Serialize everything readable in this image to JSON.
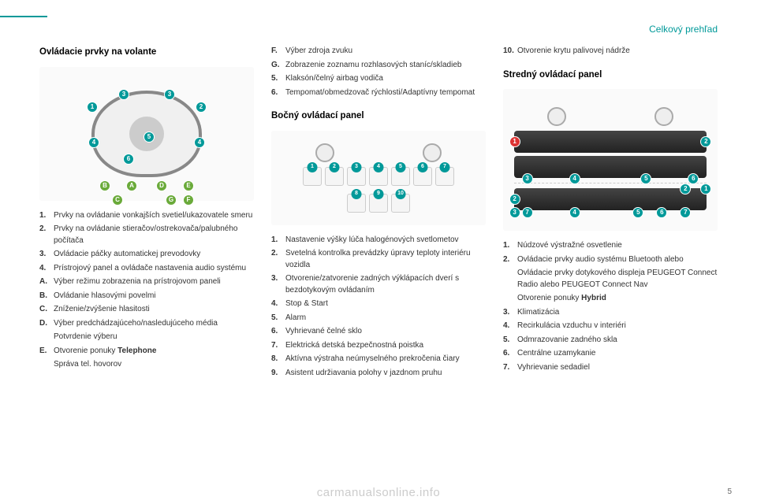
{
  "breadcrumb": "Celkový prehľad",
  "pagenum": "5",
  "watermark": "carmanualsonline.info",
  "col1": {
    "heading": "Ovládacie prvky na volante",
    "diagram": {
      "numbers": [
        "1",
        "2",
        "3",
        "3",
        "4",
        "4",
        "5",
        "6"
      ],
      "letters": [
        "A",
        "B",
        "C",
        "D",
        "E",
        "F",
        "G"
      ]
    },
    "items_numeric": [
      {
        "k": "1.",
        "v": "Prvky na ovládanie vonkajších svetiel/ukazovatele smeru"
      },
      {
        "k": "2.",
        "v": "Prvky na ovládanie stieračov/ostrekovača/palubného počítača"
      },
      {
        "k": "3.",
        "v": "Ovládacie páčky automatickej prevodovky"
      },
      {
        "k": "4.",
        "v": "Prístrojový panel a ovládače nastavenia audio systému"
      }
    ],
    "items_alpha": [
      {
        "k": "A.",
        "v": "Výber režimu zobrazenia na prístrojovom paneli"
      },
      {
        "k": "B.",
        "v": "Ovládanie hlasovými povelmi"
      },
      {
        "k": "C.",
        "v": "Zníženie/zvýšenie hlasitosti"
      },
      {
        "k": "D.",
        "v": "Výber predchádzajúceho/nasledujúceho média",
        "sub": "Potvrdenie výberu"
      },
      {
        "k": "E.",
        "v": "Otvorenie ponuky ",
        "b": "Telephone",
        "sub": "Správa tel. hovorov"
      }
    ]
  },
  "col2": {
    "top_items": [
      {
        "k": "F.",
        "v": "Výber zdroja zvuku"
      },
      {
        "k": "G.",
        "v": "Zobrazenie zoznamu rozhlasových staníc/skladieb"
      },
      {
        "k": "5.",
        "v": "Klaksón/čelný airbag vodiča"
      },
      {
        "k": "6.",
        "v": "Tempomat/obmedzovač rýchlosti/Adaptívny tempomat"
      }
    ],
    "heading": "Bočný ovládací panel",
    "row1_count": 7,
    "row2_count": 3,
    "items": [
      {
        "k": "1.",
        "v": "Nastavenie výšky lúča halogénových svetlometov"
      },
      {
        "k": "2.",
        "v": "Svetelná kontrolka prevádzky úpravy teploty interiéru vozidla"
      },
      {
        "k": "3.",
        "v": "Otvorenie/zatvorenie zadných výklápacích dverí s bezdotykovým ovládaním"
      },
      {
        "k": "4.",
        "v": "Stop & Start"
      },
      {
        "k": "5.",
        "v": "Alarm"
      },
      {
        "k": "6.",
        "v": "Vyhrievané čelné sklo"
      },
      {
        "k": "7.",
        "v": "Elektrická detská bezpečnostná poistka"
      },
      {
        "k": "8.",
        "v": "Aktívna výstraha neúmyselného prekročenia čiary"
      },
      {
        "k": "9.",
        "v": "Asistent udržiavania polohy v jazdnom pruhu"
      }
    ]
  },
  "col3": {
    "top_items": [
      {
        "k": "10.",
        "v": "Otvorenie krytu palivovej nádrže"
      }
    ],
    "heading": "Stredný ovládací panel",
    "items": [
      {
        "k": "1.",
        "v": "Núdzové výstražné osvetlenie"
      },
      {
        "k": "2.",
        "v": "Ovládacie prvky audio systému Bluetooth alebo",
        "sub1": "Ovládacie prvky dotykového displeja PEUGEOT Connect Radio alebo PEUGEOT Connect Nav",
        "sub2pre": "Otvorenie ponuky ",
        "sub2b": "Hybrid"
      },
      {
        "k": "3.",
        "v": "Klimatizácia"
      },
      {
        "k": "4.",
        "v": "Recirkulácia vzduchu v interiéri"
      },
      {
        "k": "5.",
        "v": "Odmrazovanie zadného skla"
      },
      {
        "k": "6.",
        "v": "Centrálne uzamykanie"
      },
      {
        "k": "7.",
        "v": "Vyhrievanie sedadiel"
      }
    ]
  }
}
